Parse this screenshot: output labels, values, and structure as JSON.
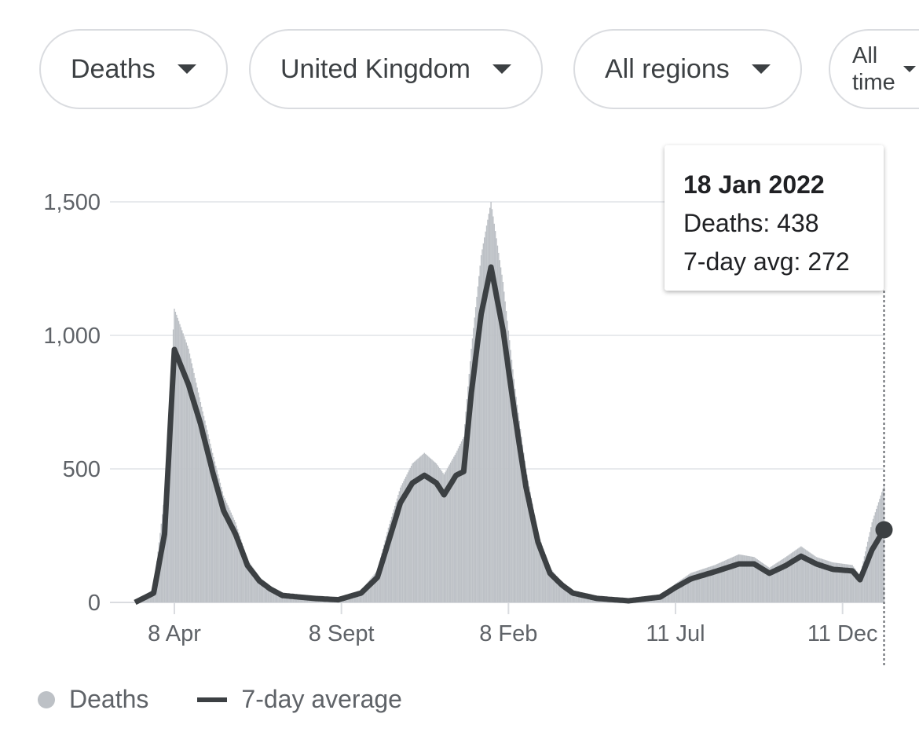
{
  "filters": [
    {
      "label": "Deaths"
    },
    {
      "label": "United Kingdom"
    },
    {
      "label": "All regions"
    },
    {
      "label": "All time"
    }
  ],
  "tooltip": {
    "date": "18 Jan 2022",
    "deaths": "Deaths: 438",
    "avg": "7-day avg: 272"
  },
  "legend": {
    "deaths": "Deaths",
    "avg": "7-day average"
  },
  "colors": {
    "bars": "#bdc1c6",
    "line": "#3c4043",
    "grid": "#e8eaed"
  },
  "chart_data": {
    "type": "bar",
    "title": "",
    "xlabel": "",
    "ylabel": "",
    "ylim": [
      0,
      1700
    ],
    "yticks": [
      {
        "v": 0,
        "label": "0"
      },
      {
        "v": 500,
        "label": "500"
      },
      {
        "v": 1000,
        "label": "1,000"
      },
      {
        "v": 1500,
        "label": "1,500"
      }
    ],
    "xticks": [
      {
        "date": "2020-04-08",
        "label": "8 Apr"
      },
      {
        "date": "2020-09-08",
        "label": "8 Sept"
      },
      {
        "date": "2021-02-08",
        "label": "8 Feb"
      },
      {
        "date": "2021-07-11",
        "label": "11 Jul"
      },
      {
        "date": "2021-12-11",
        "label": "11 Dec"
      }
    ],
    "grid": true,
    "legend_position": "bottom-left",
    "series": [
      {
        "name": "Deaths",
        "type": "bar",
        "points": [
          [
            "2020-03-03",
            0
          ],
          [
            "2020-03-20",
            50
          ],
          [
            "2020-03-30",
            400
          ],
          [
            "2020-04-08",
            1100
          ],
          [
            "2020-04-21",
            950
          ],
          [
            "2020-05-02",
            750
          ],
          [
            "2020-05-13",
            560
          ],
          [
            "2020-05-23",
            400
          ],
          [
            "2020-06-03",
            300
          ],
          [
            "2020-06-14",
            160
          ],
          [
            "2020-06-25",
            95
          ],
          [
            "2020-07-05",
            60
          ],
          [
            "2020-07-16",
            30
          ],
          [
            "2020-08-14",
            18
          ],
          [
            "2020-09-05",
            12
          ],
          [
            "2020-09-26",
            45
          ],
          [
            "2020-10-11",
            120
          ],
          [
            "2020-10-21",
            280
          ],
          [
            "2020-11-01",
            430
          ],
          [
            "2020-11-12",
            520
          ],
          [
            "2020-11-23",
            560
          ],
          [
            "2020-12-04",
            520
          ],
          [
            "2020-12-11",
            480
          ],
          [
            "2020-12-22",
            560
          ],
          [
            "2020-12-29",
            620
          ],
          [
            "2021-01-05",
            950
          ],
          [
            "2021-01-14",
            1300
          ],
          [
            "2021-01-23",
            1500
          ],
          [
            "2021-02-03",
            1200
          ],
          [
            "2021-02-14",
            800
          ],
          [
            "2021-02-24",
            500
          ],
          [
            "2021-03-07",
            260
          ],
          [
            "2021-03-18",
            130
          ],
          [
            "2021-03-29",
            75
          ],
          [
            "2021-04-08",
            40
          ],
          [
            "2021-04-30",
            18
          ],
          [
            "2021-05-29",
            8
          ],
          [
            "2021-06-27",
            25
          ],
          [
            "2021-07-11",
            70
          ],
          [
            "2021-07-25",
            110
          ],
          [
            "2021-08-16",
            140
          ],
          [
            "2021-09-07",
            180
          ],
          [
            "2021-09-21",
            170
          ],
          [
            "2021-10-05",
            130
          ],
          [
            "2021-10-20",
            170
          ],
          [
            "2021-11-03",
            210
          ],
          [
            "2021-11-17",
            170
          ],
          [
            "2021-12-02",
            150
          ],
          [
            "2021-12-20",
            140
          ],
          [
            "2021-12-27",
            100
          ],
          [
            "2022-01-07",
            300
          ],
          [
            "2022-01-18",
            438
          ]
        ]
      },
      {
        "name": "7-day average",
        "type": "line",
        "points": [
          [
            "2020-03-03",
            0
          ],
          [
            "2020-03-20",
            35
          ],
          [
            "2020-03-30",
            256
          ],
          [
            "2020-04-08",
            947
          ],
          [
            "2020-04-21",
            815
          ],
          [
            "2020-05-02",
            668
          ],
          [
            "2020-05-13",
            490
          ],
          [
            "2020-05-23",
            344
          ],
          [
            "2020-06-03",
            256
          ],
          [
            "2020-06-14",
            138
          ],
          [
            "2020-06-25",
            80
          ],
          [
            "2020-07-05",
            50
          ],
          [
            "2020-07-16",
            26
          ],
          [
            "2020-08-14",
            15
          ],
          [
            "2020-09-05",
            10
          ],
          [
            "2020-09-26",
            35
          ],
          [
            "2020-10-11",
            94
          ],
          [
            "2020-10-21",
            226
          ],
          [
            "2020-11-01",
            373
          ],
          [
            "2020-11-12",
            447
          ],
          [
            "2020-11-23",
            476
          ],
          [
            "2020-12-04",
            447
          ],
          [
            "2020-12-11",
            403
          ],
          [
            "2020-12-22",
            476
          ],
          [
            "2020-12-29",
            490
          ],
          [
            "2021-01-05",
            785
          ],
          [
            "2021-01-14",
            1080
          ],
          [
            "2021-01-23",
            1256
          ],
          [
            "2021-02-03",
            1020
          ],
          [
            "2021-02-14",
            697
          ],
          [
            "2021-02-24",
            432
          ],
          [
            "2021-03-07",
            226
          ],
          [
            "2021-03-18",
            109
          ],
          [
            "2021-03-29",
            65
          ],
          [
            "2021-04-08",
            35
          ],
          [
            "2021-04-30",
            15
          ],
          [
            "2021-05-29",
            6
          ],
          [
            "2021-06-27",
            20
          ],
          [
            "2021-07-11",
            56
          ],
          [
            "2021-07-25",
            88
          ],
          [
            "2021-08-16",
            115
          ],
          [
            "2021-09-07",
            144
          ],
          [
            "2021-09-21",
            144
          ],
          [
            "2021-10-05",
            109
          ],
          [
            "2021-10-20",
            138
          ],
          [
            "2021-11-03",
            173
          ],
          [
            "2021-11-17",
            144
          ],
          [
            "2021-12-02",
            124
          ],
          [
            "2021-12-20",
            118
          ],
          [
            "2021-12-27",
            85
          ],
          [
            "2022-01-07",
            197
          ],
          [
            "2022-01-18",
            272
          ]
        ]
      }
    ]
  }
}
